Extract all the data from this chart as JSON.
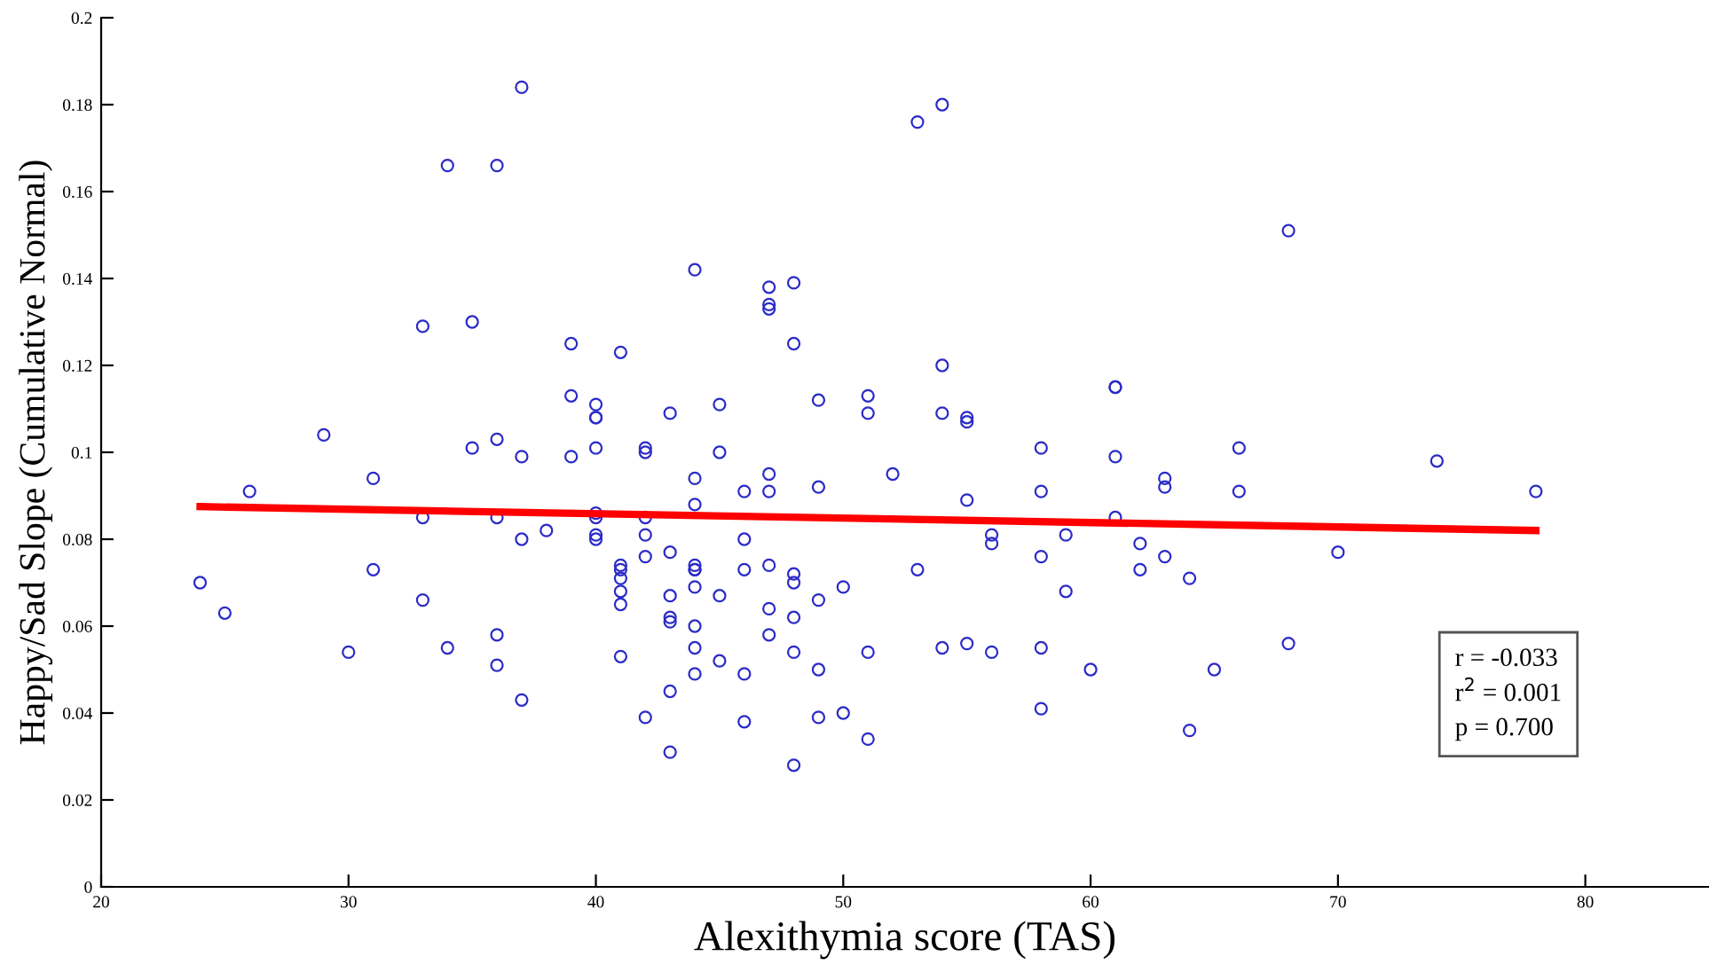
{
  "chart_data": {
    "type": "scatter",
    "xlabel": "Alexithymia score (TAS)",
    "ylabel": "Happy/Sad Slope (Cumulative Normal)",
    "annotations": [
      "r = -0.033",
      "r$^{2}$ = 0.001",
      "p = 0.700"
    ],
    "xlim": [
      20,
      85
    ],
    "xticks": [
      20,
      30,
      40,
      50,
      60,
      70,
      80
    ],
    "ylim": [
      0,
      0.2
    ],
    "yticks": [
      0,
      0.02,
      0.04,
      0.06,
      0.08,
      0.1,
      0.12,
      0.14,
      0.16,
      0.18,
      0.2
    ],
    "grid": false,
    "legend": false,
    "series": [
      {
        "color": "#2b2bc8",
        "marker": "circle",
        "x": [
          24,
          25,
          26,
          29,
          30,
          31,
          31,
          33,
          33,
          33,
          34,
          34,
          35,
          35,
          36,
          36,
          36,
          36,
          36,
          37,
          37,
          37,
          37,
          38,
          39,
          39,
          39,
          40,
          40,
          40,
          40,
          40,
          40,
          40,
          40,
          41,
          41,
          41,
          41,
          41,
          41,
          41,
          42,
          42,
          42,
          42,
          42,
          42,
          43,
          43,
          43,
          43,
          43,
          43,
          43,
          44,
          44,
          44,
          44,
          44,
          44,
          44,
          44,
          44,
          44,
          45,
          45,
          45,
          45,
          46,
          46,
          46,
          46,
          46,
          47,
          47,
          47,
          47,
          47,
          47,
          47,
          47,
          48,
          48,
          48,
          48,
          48,
          48,
          48,
          49,
          49,
          49,
          49,
          49,
          50,
          50,
          51,
          51,
          51,
          51,
          52,
          53,
          53,
          54,
          54,
          54,
          54,
          55,
          55,
          55,
          55,
          56,
          56,
          56,
          58,
          58,
          58,
          58,
          58,
          59,
          59,
          60,
          61,
          61,
          61,
          61,
          62,
          62,
          63,
          63,
          63,
          64,
          64,
          65,
          66,
          66,
          68,
          68,
          70,
          74,
          78
        ],
        "values": [
          0.07,
          0.063,
          0.091,
          0.104,
          0.054,
          0.094,
          0.073,
          0.129,
          0.085,
          0.066,
          0.166,
          0.055,
          0.13,
          0.101,
          0.166,
          0.103,
          0.085,
          0.058,
          0.051,
          0.184,
          0.099,
          0.08,
          0.043,
          0.082,
          0.125,
          0.113,
          0.099,
          0.111,
          0.108,
          0.108,
          0.101,
          0.086,
          0.085,
          0.081,
          0.08,
          0.123,
          0.074,
          0.073,
          0.071,
          0.068,
          0.065,
          0.053,
          0.101,
          0.1,
          0.085,
          0.081,
          0.076,
          0.039,
          0.109,
          0.077,
          0.067,
          0.062,
          0.061,
          0.045,
          0.031,
          0.142,
          0.094,
          0.088,
          0.074,
          0.073,
          0.073,
          0.069,
          0.06,
          0.055,
          0.049,
          0.111,
          0.1,
          0.067,
          0.052,
          0.091,
          0.08,
          0.073,
          0.049,
          0.038,
          0.138,
          0.134,
          0.133,
          0.095,
          0.091,
          0.074,
          0.064,
          0.058,
          0.139,
          0.125,
          0.072,
          0.07,
          0.062,
          0.054,
          0.028,
          0.112,
          0.092,
          0.066,
          0.05,
          0.039,
          0.069,
          0.04,
          0.113,
          0.109,
          0.054,
          0.034,
          0.095,
          0.176,
          0.073,
          0.18,
          0.12,
          0.109,
          0.055,
          0.108,
          0.107,
          0.089,
          0.056,
          0.081,
          0.079,
          0.054,
          0.101,
          0.091,
          0.076,
          0.055,
          0.041,
          0.081,
          0.068,
          0.05,
          0.115,
          0.115,
          0.099,
          0.085,
          0.079,
          0.073,
          0.094,
          0.092,
          0.076,
          0.071,
          0.036,
          0.05,
          0.101,
          0.091,
          0.151,
          0.056,
          0.077,
          0.098,
          0.091
        ]
      },
      {
        "type": "line",
        "color": "#ff0000",
        "line_style": "solid",
        "marker": "none",
        "x": [
          24,
          78
        ],
        "values": [
          0.0875,
          0.082
        ]
      }
    ]
  }
}
